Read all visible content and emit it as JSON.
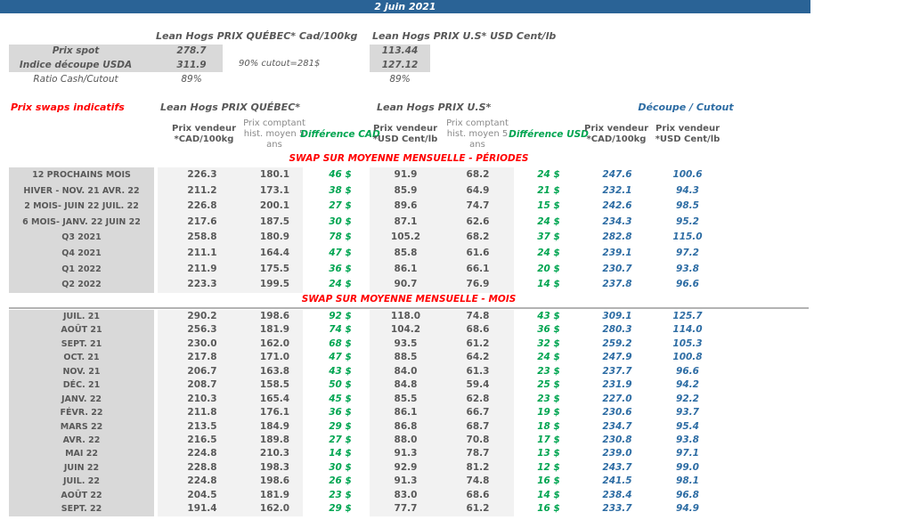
{
  "date_banner": "2 juin 2021",
  "spot": {
    "quebec_title": "Lean Hogs PRIX QUÉBEC* Cad/100kg",
    "us_title": "Lean Hogs PRIX U.S* USD Cent/lb",
    "rows": [
      {
        "label": "Prix spot",
        "cad": "278.7",
        "usd": "113.44"
      },
      {
        "label": "Indice découpe USDA",
        "cad": "311.9",
        "usd": "127.12"
      },
      {
        "label": "Ratio Cash/Cutout",
        "cad": "89%",
        "usd": "89%"
      }
    ],
    "cutout_note": "90% cutout=281$"
  },
  "swaps": {
    "title": "Prix swaps indicatifs",
    "groups": {
      "quebec": "Lean Hogs PRIX QUÉBEC*",
      "us": "Lean Hogs PRIX U.S*",
      "cutout": "Découpe / Cutout"
    },
    "columns": {
      "vendeur_cad": "Prix vendeur\n*CAD/100kg",
      "comptant": "Prix comptant\nhist. moyen 5\nans",
      "diff_cad": "Différence CAD",
      "vendeur_usd": "Prix vendeur\n*USD Cent/lb",
      "diff_usd": "Différence USD",
      "cutout_cad": "Prix vendeur\n*CAD/100kg",
      "cutout_usd": "Prix vendeur\n*USD Cent/lb"
    },
    "sections": [
      {
        "header": "SWAP SUR MOYENNE MENSUELLE - PÉRIODES",
        "rows": [
          [
            "12 PROCHAINS MOIS",
            "226.3",
            "180.1",
            "46 $",
            "91.9",
            "68.2",
            "24 $",
            "247.6",
            "100.6"
          ],
          [
            "HIVER - NOV. 21 AVR. 22",
            "211.2",
            "173.1",
            "38 $",
            "85.9",
            "64.9",
            "21 $",
            "232.1",
            "94.3"
          ],
          [
            "2 MOIS- JUIN 22 JUIL. 22",
            "226.8",
            "200.1",
            "27 $",
            "89.6",
            "74.7",
            "15 $",
            "242.6",
            "98.5"
          ],
          [
            "6 MOIS- JANV. 22 JUIN 22",
            "217.6",
            "187.5",
            "30 $",
            "87.1",
            "62.6",
            "24 $",
            "234.3",
            "95.2"
          ],
          [
            "Q3 2021",
            "258.8",
            "180.9",
            "78 $",
            "105.2",
            "68.2",
            "37 $",
            "282.8",
            "115.0"
          ],
          [
            "Q4 2021",
            "211.1",
            "164.4",
            "47 $",
            "85.8",
            "61.6",
            "24 $",
            "239.1",
            "97.2"
          ],
          [
            "Q1 2022",
            "211.9",
            "175.5",
            "36 $",
            "86.1",
            "66.1",
            "20 $",
            "230.7",
            "93.8"
          ],
          [
            "Q2 2022",
            "223.3",
            "199.5",
            "24 $",
            "90.7",
            "76.9",
            "14 $",
            "237.8",
            "96.6"
          ]
        ]
      },
      {
        "header": "SWAP SUR MOYENNE MENSUELLE - MOIS",
        "rows": [
          [
            "JUIL. 21",
            "290.2",
            "198.6",
            "92 $",
            "118.0",
            "74.8",
            "43 $",
            "309.1",
            "125.7"
          ],
          [
            "AOÛT 21",
            "256.3",
            "181.9",
            "74 $",
            "104.2",
            "68.6",
            "36 $",
            "280.3",
            "114.0"
          ],
          [
            "SEPT. 21",
            "230.0",
            "162.0",
            "68 $",
            "93.5",
            "61.2",
            "32 $",
            "259.2",
            "105.3"
          ],
          [
            "OCT. 21",
            "217.8",
            "171.0",
            "47 $",
            "88.5",
            "64.2",
            "24 $",
            "247.9",
            "100.8"
          ],
          [
            "NOV. 21",
            "206.7",
            "163.8",
            "43 $",
            "84.0",
            "61.3",
            "23 $",
            "237.7",
            "96.6"
          ],
          [
            "DÉC. 21",
            "208.7",
            "158.5",
            "50 $",
            "84.8",
            "59.4",
            "25 $",
            "231.9",
            "94.2"
          ],
          [
            "JANV. 22",
            "210.3",
            "165.4",
            "45 $",
            "85.5",
            "62.8",
            "23 $",
            "227.0",
            "92.2"
          ],
          [
            "FÉVR. 22",
            "211.8",
            "176.1",
            "36 $",
            "86.1",
            "66.7",
            "19 $",
            "230.6",
            "93.7"
          ],
          [
            "MARS 22",
            "213.5",
            "184.9",
            "29 $",
            "86.8",
            "68.7",
            "18 $",
            "234.7",
            "95.4"
          ],
          [
            "AVR. 22",
            "216.5",
            "189.8",
            "27 $",
            "88.0",
            "70.8",
            "17 $",
            "230.8",
            "93.8"
          ],
          [
            "MAI 22",
            "224.8",
            "210.3",
            "14 $",
            "91.3",
            "78.7",
            "13 $",
            "239.0",
            "97.1"
          ],
          [
            "JUIN 22",
            "228.8",
            "198.3",
            "30 $",
            "92.9",
            "81.2",
            "12 $",
            "243.7",
            "99.0"
          ],
          [
            "JUIL. 22",
            "224.8",
            "198.6",
            "26 $",
            "91.3",
            "74.8",
            "16 $",
            "241.5",
            "98.1"
          ],
          [
            "AOÛT 22",
            "204.5",
            "181.9",
            "23 $",
            "83.0",
            "68.6",
            "14 $",
            "238.4",
            "96.8"
          ],
          [
            "SEPT. 22",
            "191.4",
            "162.0",
            "29 $",
            "77.7",
            "61.2",
            "16 $",
            "233.7",
            "94.9"
          ]
        ]
      }
    ]
  },
  "colors": {
    "banner_blue": "#2A6396",
    "accent_red": "#FF0000",
    "diff_green": "#00A551",
    "cutout_blue": "#2E6DA4",
    "text_gray": "#595959",
    "label_bg": "#D9D9D9",
    "band_bg": "#F2F2F2"
  }
}
